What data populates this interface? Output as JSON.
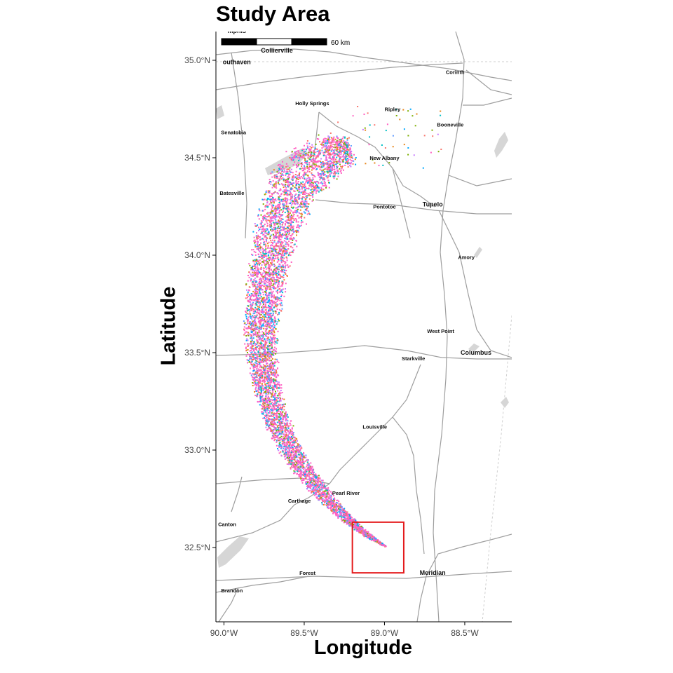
{
  "title": "Study Area",
  "x_axis_title": "Longitude",
  "y_axis_title": "Latitude",
  "x_ticks": [
    {
      "value": -90.0,
      "label": "90.0°W"
    },
    {
      "value": -89.5,
      "label": "89.5°W"
    },
    {
      "value": -89.0,
      "label": "89.0°W"
    },
    {
      "value": -88.5,
      "label": "88.5°W"
    }
  ],
  "y_ticks": [
    {
      "value": 32.5,
      "label": "32.5°N"
    },
    {
      "value": 33.0,
      "label": "33.0°N"
    },
    {
      "value": 33.5,
      "label": "33.5°N"
    },
    {
      "value": 34.0,
      "label": "34.0°N"
    },
    {
      "value": 34.5,
      "label": "34.5°N"
    },
    {
      "value": 35.0,
      "label": "35.0°N"
    }
  ],
  "extent": {
    "lon_min": -90.0,
    "lon_max": -88.25,
    "lat_min": 32.04,
    "lat_max": 35.16
  },
  "scale_bar": {
    "label": "60 km"
  },
  "cities": [
    {
      "name": "mphis",
      "lon": -89.92,
      "lat": 35.14,
      "bold": true
    },
    {
      "name": "Collierville",
      "lon": -89.67,
      "lat": 35.04,
      "bold": true
    },
    {
      "name": "outhaven",
      "lon": -89.92,
      "lat": 34.98,
      "bold": true
    },
    {
      "name": "Corinth",
      "lon": -88.56,
      "lat": 34.93,
      "bold": false
    },
    {
      "name": "Holly Springs",
      "lon": -89.45,
      "lat": 34.77,
      "bold": false
    },
    {
      "name": "Ripley",
      "lon": -88.95,
      "lat": 34.74,
      "bold": false
    },
    {
      "name": "Booneville",
      "lon": -88.59,
      "lat": 34.66,
      "bold": false
    },
    {
      "name": "Senatobia",
      "lon": -89.94,
      "lat": 34.62,
      "bold": false
    },
    {
      "name": "New Albany",
      "lon": -89.0,
      "lat": 34.49,
      "bold": false
    },
    {
      "name": "Batesville",
      "lon": -89.95,
      "lat": 34.31,
      "bold": false
    },
    {
      "name": "Pontotoc",
      "lon": -89.0,
      "lat": 34.24,
      "bold": false
    },
    {
      "name": "Tupelo",
      "lon": -88.7,
      "lat": 34.25,
      "bold": true
    },
    {
      "name": "Amory",
      "lon": -88.49,
      "lat": 33.98,
      "bold": false
    },
    {
      "name": "West Point",
      "lon": -88.65,
      "lat": 33.6,
      "bold": false
    },
    {
      "name": "Starkville",
      "lon": -88.82,
      "lat": 33.46,
      "bold": false
    },
    {
      "name": "Columbus",
      "lon": -88.43,
      "lat": 33.49,
      "bold": true
    },
    {
      "name": "Louisville",
      "lon": -89.06,
      "lat": 33.11,
      "bold": false
    },
    {
      "name": "Pearl River",
      "lon": -89.24,
      "lat": 32.77,
      "bold": false
    },
    {
      "name": "Carthage",
      "lon": -89.53,
      "lat": 32.73,
      "bold": false
    },
    {
      "name": "Canton",
      "lon": -89.98,
      "lat": 32.61,
      "bold": false
    },
    {
      "name": "Forest",
      "lon": -89.48,
      "lat": 32.36,
      "bold": false
    },
    {
      "name": "Meridian",
      "lon": -88.7,
      "lat": 32.36,
      "bold": true
    },
    {
      "name": "Brandon",
      "lon": -89.95,
      "lat": 32.27,
      "bold": false
    }
  ],
  "study_box": {
    "lon_min": -89.2,
    "lon_max": -88.88,
    "lat_min": 32.37,
    "lat_max": 32.63,
    "color": "#e41a1c"
  },
  "plume": {
    "colors": [
      "#F8766D",
      "#7CAE00",
      "#00BFC4",
      "#C77CFF",
      "#FF61C3",
      "#00A9FF",
      "#E7861B",
      "#619CFF"
    ],
    "dominant_color": "#FF61C3",
    "source": {
      "lon": -89.03,
      "lat": 32.49
    }
  },
  "colors": {
    "road": "#9e9e9e",
    "water": "#d6d6d6",
    "boundary": "#cfcfcf"
  }
}
